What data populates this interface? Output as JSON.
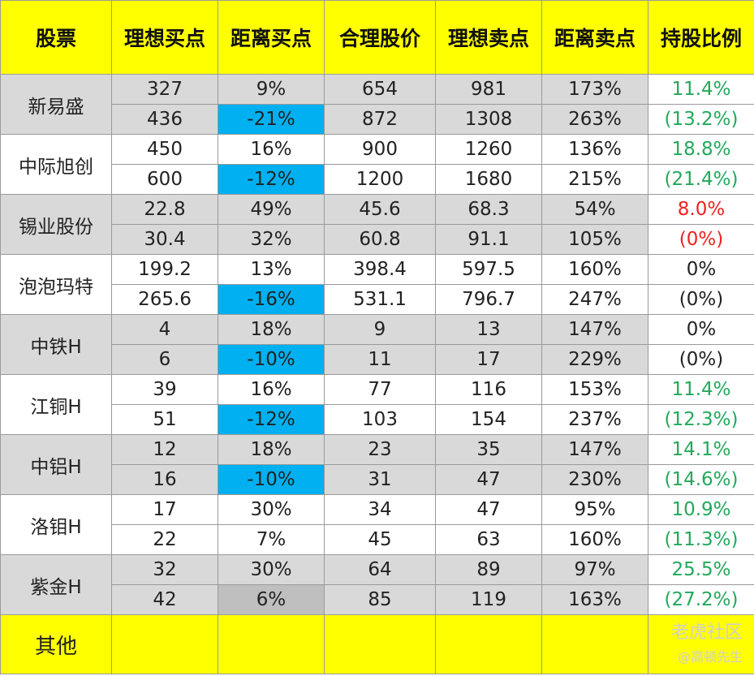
{
  "headers": [
    "股票",
    "理想买点",
    "距离买点",
    "合理股价",
    "理想卖点",
    "距离卖点",
    "持股比例"
  ],
  "rows": [
    {
      "stock": "新易盛",
      "group": "gray",
      "subrows": [
        {
          "buy": "327",
          "dist_buy": "9%",
          "fair": "654",
          "sell": "981",
          "dist_sell": "173%",
          "pct": "11.4%",
          "dist_buy_hl": "",
          "pct_color": "green"
        },
        {
          "buy": "436",
          "dist_buy": "-21%",
          "fair": "872",
          "sell": "1308",
          "dist_sell": "263%",
          "pct": "(13.2%)",
          "dist_buy_hl": "blue",
          "pct_color": "green"
        }
      ]
    },
    {
      "stock": "中际旭创",
      "group": "white",
      "subrows": [
        {
          "buy": "450",
          "dist_buy": "16%",
          "fair": "900",
          "sell": "1260",
          "dist_sell": "136%",
          "pct": "18.8%",
          "dist_buy_hl": "",
          "pct_color": "green"
        },
        {
          "buy": "600",
          "dist_buy": "-12%",
          "fair": "1200",
          "sell": "1680",
          "dist_sell": "215%",
          "pct": "(21.4%)",
          "dist_buy_hl": "blue",
          "pct_color": "green"
        }
      ]
    },
    {
      "stock": "锡业股份",
      "group": "gray",
      "subrows": [
        {
          "buy": "22.8",
          "dist_buy": "49%",
          "fair": "45.6",
          "sell": "68.3",
          "dist_sell": "54%",
          "pct": "8.0%",
          "dist_buy_hl": "",
          "pct_color": "red"
        },
        {
          "buy": "30.4",
          "dist_buy": "32%",
          "fair": "60.8",
          "sell": "91.1",
          "dist_sell": "105%",
          "pct": "(0%)",
          "dist_buy_hl": "",
          "pct_color": "red"
        }
      ]
    },
    {
      "stock": "泡泡玛特",
      "group": "white",
      "subrows": [
        {
          "buy": "199.2",
          "dist_buy": "13%",
          "fair": "398.4",
          "sell": "597.5",
          "dist_sell": "160%",
          "pct": "0%",
          "dist_buy_hl": "",
          "pct_color": "black"
        },
        {
          "buy": "265.6",
          "dist_buy": "-16%",
          "fair": "531.1",
          "sell": "796.7",
          "dist_sell": "247%",
          "pct": "(0%)",
          "dist_buy_hl": "blue",
          "pct_color": "black"
        }
      ]
    },
    {
      "stock": "中铁H",
      "group": "gray",
      "subrows": [
        {
          "buy": "4",
          "dist_buy": "18%",
          "fair": "9",
          "sell": "13",
          "dist_sell": "147%",
          "pct": "0%",
          "dist_buy_hl": "",
          "pct_color": "black"
        },
        {
          "buy": "6",
          "dist_buy": "-10%",
          "fair": "11",
          "sell": "17",
          "dist_sell": "229%",
          "pct": "(0%)",
          "dist_buy_hl": "blue",
          "pct_color": "black"
        }
      ]
    },
    {
      "stock": "江铜H",
      "group": "white",
      "subrows": [
        {
          "buy": "39",
          "dist_buy": "16%",
          "fair": "77",
          "sell": "116",
          "dist_sell": "153%",
          "pct": "11.4%",
          "dist_buy_hl": "",
          "pct_color": "green"
        },
        {
          "buy": "51",
          "dist_buy": "-12%",
          "fair": "103",
          "sell": "154",
          "dist_sell": "237%",
          "pct": "(12.3%)",
          "dist_buy_hl": "blue",
          "pct_color": "green"
        }
      ]
    },
    {
      "stock": "中铝H",
      "group": "gray",
      "subrows": [
        {
          "buy": "12",
          "dist_buy": "18%",
          "fair": "23",
          "sell": "35",
          "dist_sell": "147%",
          "pct": "14.1%",
          "dist_buy_hl": "",
          "pct_color": "green"
        },
        {
          "buy": "16",
          "dist_buy": "-10%",
          "fair": "31",
          "sell": "47",
          "dist_sell": "230%",
          "pct": "(14.6%)",
          "dist_buy_hl": "blue",
          "pct_color": "green"
        }
      ]
    },
    {
      "stock": "洛钼H",
      "group": "white",
      "subrows": [
        {
          "buy": "17",
          "dist_buy": "30%",
          "fair": "34",
          "sell": "47",
          "dist_sell": "95%",
          "pct": "10.9%",
          "dist_buy_hl": "",
          "pct_color": "green"
        },
        {
          "buy": "22",
          "dist_buy": "7%",
          "fair": "45",
          "sell": "63",
          "dist_sell": "160%",
          "pct": "(11.3%)",
          "dist_buy_hl": "",
          "pct_color": "green"
        }
      ]
    },
    {
      "stock": "紫金H",
      "group": "gray",
      "subrows": [
        {
          "buy": "32",
          "dist_buy": "30%",
          "fair": "64",
          "sell": "89",
          "dist_sell": "97%",
          "pct": "25.5%",
          "dist_buy_hl": "",
          "pct_color": "green"
        },
        {
          "buy": "42",
          "dist_buy": "6%",
          "fair": "85",
          "sell": "119",
          "dist_sell": "163%",
          "pct": "(27.2%)",
          "dist_buy_hl": "gray",
          "pct_color": "green"
        }
      ]
    }
  ],
  "footer": {
    "label": "其他"
  },
  "watermark": {
    "line1": "老虎社区",
    "line2": "@高顿先生"
  },
  "colors": {
    "header_bg": "#ffff00",
    "highlight_blue": "#00b0f0",
    "group_gray": "#d9d9d9",
    "pct_green": "#22a95b",
    "pct_red": "#ee2222"
  }
}
